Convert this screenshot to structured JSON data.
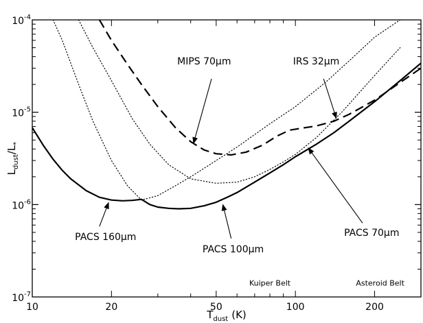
{
  "chart_data": {
    "type": "line",
    "xlabel": {
      "main": "T",
      "sub": "dust",
      "unit": "(K)"
    },
    "ylabel": {
      "main": "L",
      "sub1": "dust",
      "sep": "/L",
      "sub2": "*"
    },
    "x_scale": "log",
    "y_scale": "log",
    "xlim": [
      10,
      300
    ],
    "ylim": [
      1e-07,
      0.0001
    ],
    "x_ticks": [
      {
        "value": 10,
        "label": "10"
      },
      {
        "value": 20,
        "label": "20"
      },
      {
        "value": 50,
        "label": "50"
      },
      {
        "value": 100,
        "label": "100"
      },
      {
        "value": 200,
        "label": "200"
      }
    ],
    "y_ticks": [
      {
        "value": 1e-07,
        "base": "10",
        "exp": "-7"
      },
      {
        "value": 1e-06,
        "base": "10",
        "exp": "-6"
      },
      {
        "value": 1e-05,
        "base": "10",
        "exp": "-5"
      },
      {
        "value": 0.0001,
        "base": "10",
        "exp": "-4"
      }
    ],
    "grid": false,
    "series": [
      {
        "style": "dotted",
        "x": [
          15.0,
          17.0,
          20.0,
          24.0,
          28.0,
          33.0,
          40.0,
          50.0,
          60.0,
          70.0,
          80.0,
          90.0,
          100.0,
          120.0,
          150.0,
          200.0,
          250.0
        ],
        "y": [
          0.0001,
          5e-05,
          2.2e-05,
          8.5e-06,
          4.5e-06,
          2.7e-06,
          1.9e-06,
          1.7e-06,
          1.75e-06,
          2e-06,
          2.4e-06,
          2.9e-06,
          3.5e-06,
          5.3e-06,
          1e-05,
          2.5e-05,
          5e-05
        ]
      },
      {
        "style": "dotted",
        "x": [
          12.0,
          13.0,
          15.0,
          17.0,
          20.0,
          23.0,
          26.0,
          30.0,
          35.0,
          40.0,
          50.0,
          60.0,
          80.0,
          100.0,
          130.0,
          160.0,
          200.0,
          250.0
        ],
        "y": [
          0.0001,
          6e-05,
          2e-05,
          8e-06,
          3e-06,
          1.6e-06,
          1.12e-06,
          1.25e-06,
          1.6e-06,
          2e-06,
          3e-06,
          4.2e-06,
          7.5e-06,
          1.15e-05,
          2.1e-05,
          3.6e-05,
          6.5e-05,
          0.0001
        ]
      },
      {
        "style": "dashed",
        "x": [
          18.0,
          20.0,
          23.0,
          26.0,
          30.0,
          35.0,
          40.0,
          45.0,
          50.0,
          57.0,
          65.0,
          75.0,
          85.0,
          95.0,
          105.0,
          120.0,
          140.0,
          160.0,
          200.0,
          250.0,
          300.0
        ],
        "y": [
          0.0001,
          6e-05,
          3.3e-05,
          2e-05,
          1.15e-05,
          6.8e-06,
          4.8e-06,
          3.9e-06,
          3.55e-06,
          3.45e-06,
          3.7e-06,
          4.4e-06,
          5.5e-06,
          6.4e-06,
          6.7e-06,
          7.1e-06,
          8e-06,
          9.5e-06,
          1.35e-05,
          2.1e-05,
          3e-05
        ]
      },
      {
        "style": "solid",
        "x": [
          10.0,
          11.0,
          12.0,
          13.0,
          14.0,
          16.0,
          18.0,
          20.0,
          22.0,
          24.0,
          26.0,
          28.0,
          30.0,
          33.0,
          36.0,
          40.0,
          45.0,
          50.0,
          55.0,
          60.0,
          70.0,
          80.0,
          90.0,
          100.0,
          120.0,
          140.0,
          160.0,
          200.0,
          250.0,
          300.0
        ],
        "y": [
          6.8e-06,
          4.4e-06,
          3.1e-06,
          2.35e-06,
          1.9e-06,
          1.42e-06,
          1.2e-06,
          1.12e-06,
          1.1e-06,
          1.11e-06,
          1.14e-06,
          1e-06,
          9.4e-07,
          9.1e-07,
          9e-07,
          9.1e-07,
          9.7e-07,
          1.06e-06,
          1.2e-06,
          1.35e-06,
          1.75e-06,
          2.2e-06,
          2.7e-06,
          3.3e-06,
          4.5e-06,
          6e-06,
          8e-06,
          1.3e-05,
          2.2e-05,
          3.4e-05
        ]
      }
    ],
    "annotations": [
      {
        "text": "MIPS 70",
        "unit": "μm",
        "text_x": 45,
        "text_y": 3.6e-05,
        "arrow_from_x": 48,
        "arrow_from_y": 2.3e-05,
        "arrow_to_x": 41,
        "arrow_to_y": 4.6e-06
      },
      {
        "text": "IRS 32",
        "unit": "μm",
        "text_x": 120,
        "text_y": 3.6e-05,
        "arrow_from_x": 128,
        "arrow_from_y": 2.3e-05,
        "arrow_to_x": 143,
        "arrow_to_y": 8.6e-06
      },
      {
        "text": "PACS 160",
        "unit": "μm",
        "text_x": 19,
        "text_y": 4.5e-07,
        "arrow_from_x": 18,
        "arrow_from_y": 5.8e-07,
        "arrow_to_x": 19.5,
        "arrow_to_y": 1.05e-06
      },
      {
        "text": "PACS 100",
        "unit": "μm",
        "text_x": 58,
        "text_y": 3.3e-07,
        "arrow_from_x": 57,
        "arrow_from_y": 4.3e-07,
        "arrow_to_x": 53,
        "arrow_to_y": 1e-06
      },
      {
        "text": "PACS 70",
        "unit": "μm",
        "text_x": 195,
        "text_y": 5e-07,
        "arrow_from_x": 180,
        "arrow_from_y": 6.3e-07,
        "arrow_to_x": 112,
        "arrow_to_y": 4.1e-06
      },
      {
        "text": "Kuiper Belt",
        "unit": "",
        "text_x": 80,
        "text_y": 1.45e-07,
        "belt": true
      },
      {
        "text": "Asteroid Belt",
        "unit": "",
        "text_x": 210,
        "text_y": 1.45e-07,
        "belt": true
      }
    ]
  }
}
